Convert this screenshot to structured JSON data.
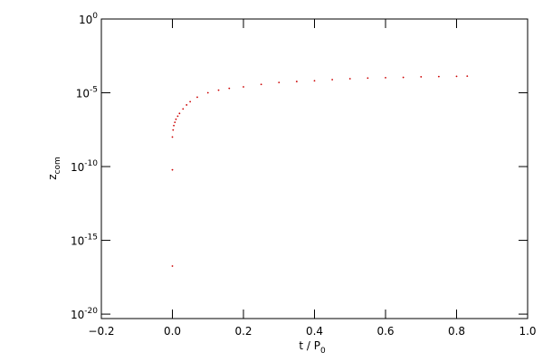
{
  "chart_data": {
    "type": "scatter",
    "log_y": true,
    "color": "#cc0000",
    "xlabel": "t / P",
    "xlabel_sub": "0",
    "ylabel": "z",
    "ylabel_sub": "com",
    "xlim": [
      -0.2,
      1.0
    ],
    "xticks": [
      {
        "value": -0.2,
        "label": "−0.2"
      },
      {
        "value": 0,
        "label": "0.0"
      },
      {
        "value": 0.2,
        "label": "0.2"
      },
      {
        "value": 0.4,
        "label": "0.4"
      },
      {
        "value": 0.6,
        "label": "0.6"
      },
      {
        "value": 0.8,
        "label": "0.8"
      },
      {
        "value": 1,
        "label": "1.0"
      }
    ],
    "ylim": [
      5e-21,
      1
    ],
    "yticks": [
      {
        "value": 1,
        "label": "10",
        "sup": "0"
      },
      {
        "value": 1e-05,
        "label": "10",
        "sup": "-5"
      },
      {
        "value": 1e-10,
        "label": "10",
        "sup": "-10"
      },
      {
        "value": 1e-15,
        "label": "10",
        "sup": "-15"
      },
      {
        "value": 1e-20,
        "label": "10",
        "sup": "-20"
      }
    ],
    "x": [
      0,
      0,
      0,
      0.002,
      0.004,
      0.007,
      0.01,
      0.015,
      0.02,
      0.03,
      0.04,
      0.05,
      0.07,
      0.1,
      0.13,
      0.16,
      0.2,
      0.25,
      0.3,
      0.35,
      0.4,
      0.45,
      0.5,
      0.55,
      0.6,
      0.65,
      0.7,
      0.75,
      0.8,
      0.83
    ],
    "values": [
      1.8e-17,
      6e-11,
      1e-08,
      3e-08,
      6e-08,
      1e-07,
      1.6e-07,
      2.6e-07,
      4e-07,
      8e-07,
      1.5e-06,
      2.5e-06,
      5e-06,
      1e-05,
      1.5e-05,
      2e-05,
      2.5e-05,
      3.7e-05,
      5e-05,
      5.8e-05,
      6.5e-05,
      7.8e-05,
      9e-05,
      0.0001,
      0.000105,
      0.00011,
      0.00012,
      0.000125,
      0.00013,
      0.000135
    ]
  }
}
